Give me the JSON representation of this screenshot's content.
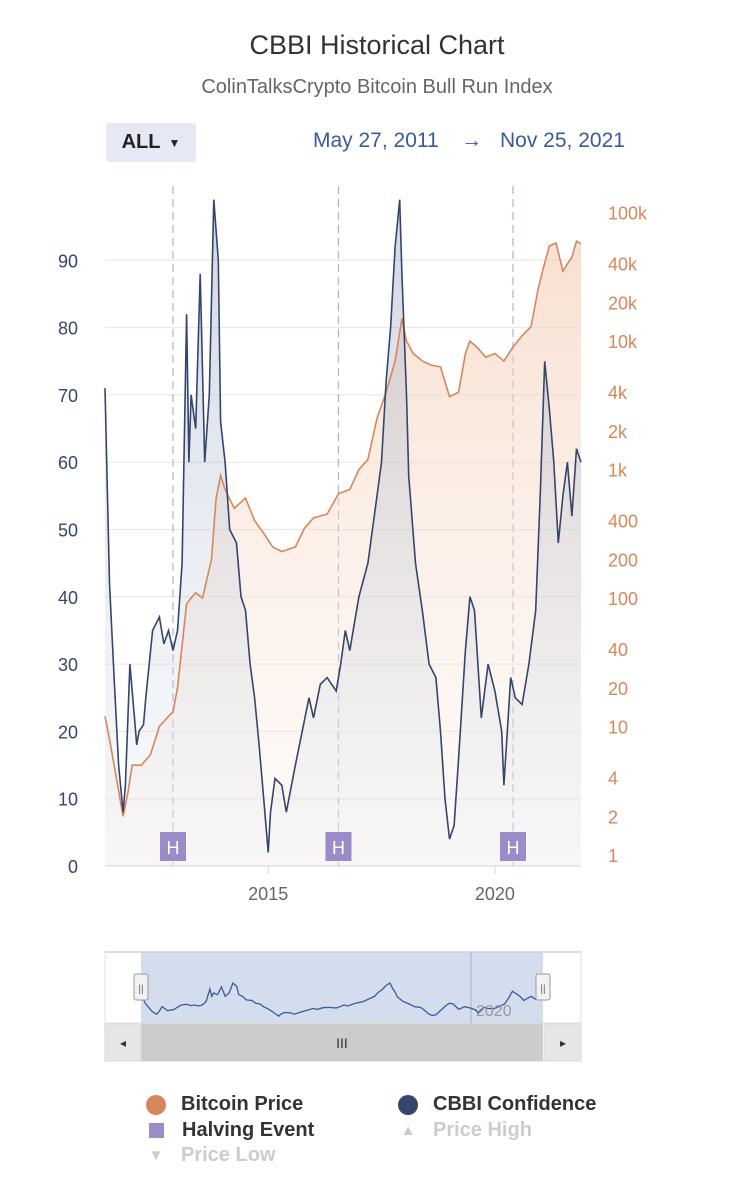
{
  "header": {
    "title": "CBBI Historical Chart",
    "subtitle": "ColinTalksCrypto Bitcoin Bull Run Index"
  },
  "range_selector": {
    "label": "ALL",
    "start_date": "May 27, 2011",
    "arrow": "→",
    "end_date": "Nov 25, 2021"
  },
  "navigator": {
    "scroll_grip": "III",
    "left_arrow": "◂",
    "right_arrow": "▸",
    "handle_grip": "||",
    "tick_label": "2020"
  },
  "legend": {
    "bitcoin_price": "Bitcoin Price",
    "cbbi_confidence": "CBBI Confidence",
    "halving_event": "Halving Event",
    "price_high": "Price High",
    "price_low": "Price Low",
    "triangle_up": "▲",
    "triangle_down": "▼"
  },
  "colors": {
    "cbbi": "#34466b",
    "price": "#d6875a",
    "halving": "#9b8cc9",
    "grid": "#e6e6e6",
    "navigator_fill": "#c5d1e8"
  },
  "chart_data": {
    "type": "line",
    "title": "CBBI Historical Chart",
    "subtitle": "ColinTalksCrypto Bitcoin Bull Run Index",
    "x_range": [
      2011.4,
      2021.9
    ],
    "x_ticks": [
      2015,
      2020
    ],
    "x_tick_labels": [
      "2015",
      "2020"
    ],
    "left_axis": {
      "name": "CBBI Confidence",
      "range": [
        0,
        100
      ],
      "ticks": [
        0,
        10,
        20,
        30,
        40,
        50,
        60,
        70,
        80,
        90
      ],
      "tick_labels": [
        "0",
        "10",
        "20",
        "30",
        "40",
        "50",
        "60",
        "70",
        "80",
        "90"
      ]
    },
    "right_axis": {
      "name": "Bitcoin Price",
      "scale": "log",
      "range": [
        1,
        150000
      ],
      "ticks": [
        1,
        2,
        4,
        10,
        20,
        40,
        100,
        200,
        400,
        1000,
        2000,
        4000,
        10000,
        20000,
        40000,
        100000
      ],
      "tick_labels": [
        "1",
        "2",
        "4",
        "10",
        "20",
        "40",
        "100",
        "200",
        "400",
        "1k",
        "2k",
        "4k",
        "10k",
        "20k",
        "40k",
        "100k"
      ]
    },
    "halving_events": [
      {
        "x": 2012.9,
        "label": "H"
      },
      {
        "x": 2016.55,
        "label": "H"
      },
      {
        "x": 2020.4,
        "label": "H"
      }
    ],
    "series": [
      {
        "name": "CBBI Confidence",
        "axis": "left",
        "x": [
          2011.4,
          2011.5,
          2011.6,
          2011.7,
          2011.8,
          2011.85,
          2011.95,
          2012.05,
          2012.1,
          2012.15,
          2012.25,
          2012.3,
          2012.45,
          2012.6,
          2012.7,
          2012.8,
          2012.9,
          2013.0,
          2013.1,
          2013.2,
          2013.25,
          2013.3,
          2013.4,
          2013.5,
          2013.6,
          2013.7,
          2013.8,
          2013.9,
          2013.95,
          2014.05,
          2014.15,
          2014.3,
          2014.4,
          2014.5,
          2014.6,
          2014.7,
          2014.8,
          2014.9,
          2015.0,
          2015.05,
          2015.15,
          2015.3,
          2015.4,
          2015.6,
          2015.75,
          2015.9,
          2016.0,
          2016.15,
          2016.3,
          2016.5,
          2016.6,
          2016.7,
          2016.8,
          2016.9,
          2017.0,
          2017.2,
          2017.4,
          2017.5,
          2017.6,
          2017.7,
          2017.8,
          2017.9,
          2017.95,
          2018.05,
          2018.1,
          2018.25,
          2018.4,
          2018.55,
          2018.7,
          2018.8,
          2018.9,
          2019.0,
          2019.1,
          2019.2,
          2019.35,
          2019.45,
          2019.55,
          2019.7,
          2019.85,
          2020.0,
          2020.15,
          2020.2,
          2020.35,
          2020.45,
          2020.6,
          2020.75,
          2020.9,
          2021.0,
          2021.1,
          2021.2,
          2021.3,
          2021.4,
          2021.5,
          2021.6,
          2021.7,
          2021.8,
          2021.9
        ],
        "y": [
          71,
          42,
          28,
          15,
          8,
          12,
          30,
          22,
          18,
          20,
          21,
          25,
          35,
          37,
          33,
          35,
          32,
          35,
          45,
          82,
          60,
          70,
          65,
          88,
          60,
          70,
          99,
          90,
          66,
          60,
          50,
          48,
          40,
          38,
          30,
          25,
          18,
          10,
          2,
          8,
          13,
          12,
          8,
          15,
          20,
          25,
          22,
          27,
          28,
          26,
          30,
          35,
          32,
          36,
          40,
          45,
          55,
          60,
          72,
          80,
          92,
          99,
          88,
          70,
          58,
          45,
          38,
          30,
          28,
          20,
          10,
          4,
          6,
          16,
          32,
          40,
          38,
          22,
          30,
          26,
          20,
          12,
          28,
          25,
          24,
          30,
          38,
          55,
          75,
          68,
          60,
          48,
          55,
          60,
          52,
          62,
          60
        ]
      },
      {
        "name": "Bitcoin Price",
        "axis": "right",
        "x": [
          2011.4,
          2011.5,
          2011.65,
          2011.8,
          2011.9,
          2012.0,
          2012.2,
          2012.4,
          2012.6,
          2012.8,
          2012.9,
          2013.0,
          2013.2,
          2013.3,
          2013.4,
          2013.55,
          2013.75,
          2013.85,
          2013.95,
          2014.05,
          2014.25,
          2014.5,
          2014.7,
          2014.9,
          2015.1,
          2015.3,
          2015.6,
          2015.8,
          2016.0,
          2016.3,
          2016.55,
          2016.8,
          2017.0,
          2017.2,
          2017.4,
          2017.6,
          2017.8,
          2017.95,
          2018.05,
          2018.2,
          2018.4,
          2018.6,
          2018.8,
          2019.0,
          2019.2,
          2019.35,
          2019.45,
          2019.6,
          2019.8,
          2020.0,
          2020.2,
          2020.4,
          2020.6,
          2020.8,
          2020.95,
          2021.05,
          2021.2,
          2021.35,
          2021.5,
          2021.6,
          2021.7,
          2021.8,
          2021.9
        ]
      }
    ],
    "price_values": [
      12,
      8,
      4,
      2,
      3,
      5,
      5,
      6,
      10,
      12,
      13,
      20,
      90,
      100,
      110,
      100,
      200,
      600,
      900,
      700,
      500,
      600,
      400,
      320,
      250,
      230,
      250,
      350,
      420,
      450,
      650,
      700,
      1000,
      1200,
      2500,
      4000,
      7000,
      15000,
      10000,
      8000,
      7000,
      6500,
      6300,
      3700,
      4000,
      8000,
      10000,
      9000,
      7500,
      8000,
      7000,
      9000,
      11000,
      13000,
      25000,
      35000,
      55000,
      58000,
      35000,
      40000,
      45000,
      60000,
      57000
    ]
  }
}
